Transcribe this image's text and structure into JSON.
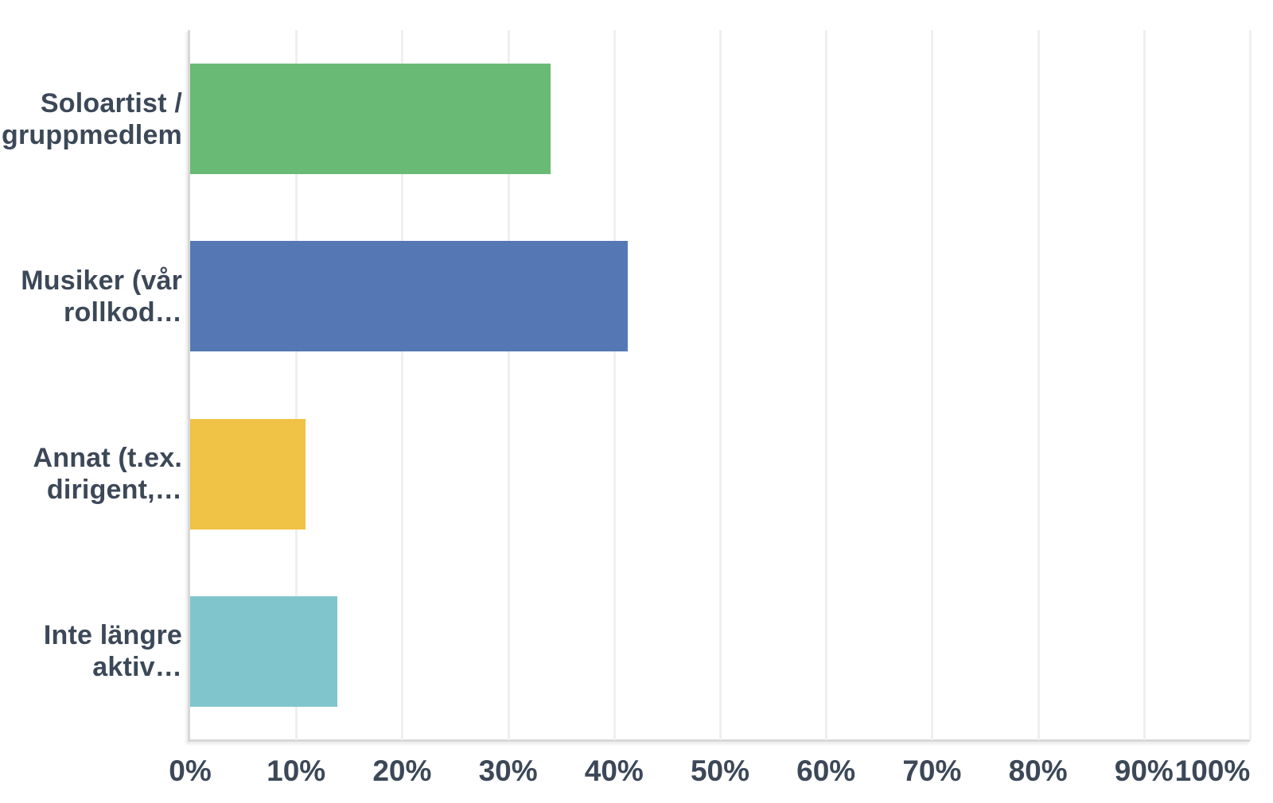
{
  "chart_data": {
    "type": "bar",
    "orientation": "horizontal",
    "title": "",
    "xlabel": "",
    "ylabel": "",
    "categories": [
      "Soloartist / gruppmedlem",
      "Musiker (vår rollkod…",
      "Annat (t.ex. dirigent,…",
      "Inte längre aktiv…"
    ],
    "category_label_lines": [
      [
        "Soloartist /",
        "gruppmedlem"
      ],
      [
        "Musiker (vår",
        "rollkod…"
      ],
      [
        "Annat (t.ex.",
        "dirigent,…"
      ],
      [
        "Inte längre",
        "aktiv…"
      ]
    ],
    "values": [
      34.0,
      41.3,
      10.9,
      13.9
    ],
    "unit": "%",
    "bar_colors": [
      "#69BA74",
      "#5578B4",
      "#F0C245",
      "#80C5CC"
    ],
    "x_ticks": [
      "0%",
      "10%",
      "20%",
      "30%",
      "40%",
      "50%",
      "60%",
      "70%",
      "80%",
      "90%",
      "100%"
    ],
    "x_tick_values": [
      0,
      10,
      20,
      30,
      40,
      50,
      60,
      70,
      80,
      90,
      100
    ],
    "xlim": [
      0,
      100
    ],
    "grid": "vertical",
    "legend": "none"
  },
  "colors": {
    "text": "#3C4858",
    "gridline": "#EFEFEF",
    "axis_line": "#D7D7D7",
    "background": "#FFFFFF"
  }
}
